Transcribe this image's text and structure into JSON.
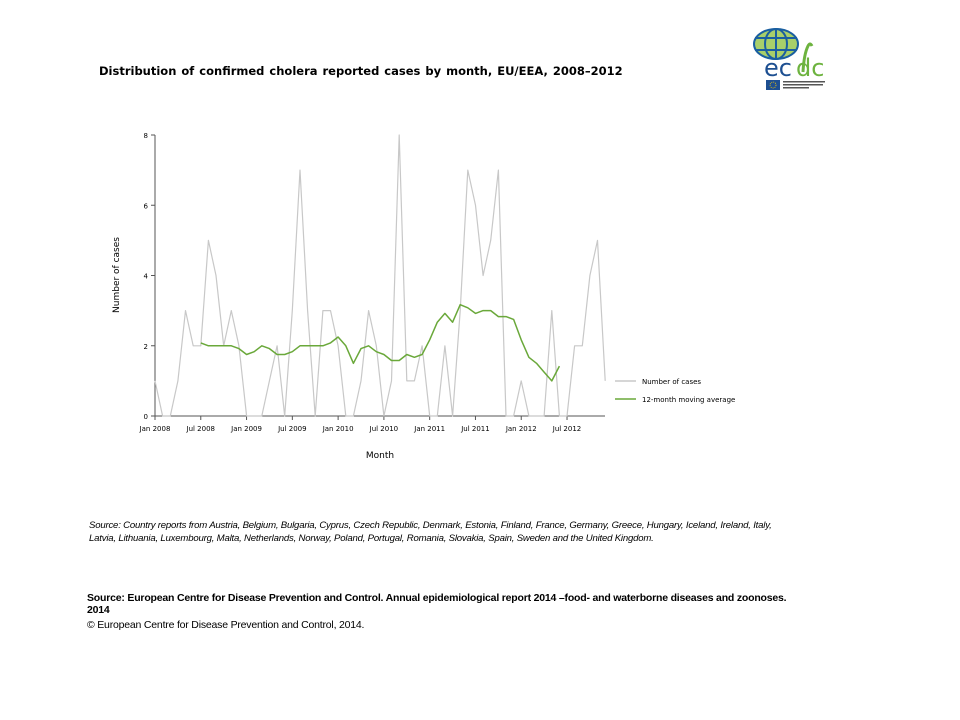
{
  "title": "Distribution  of confirmed  cholera reported cases by month, EU/EEA,  2008–2012",
  "logo": {
    "text": "ecdc",
    "subtext": "EUROPEAN CENTRE FOR DISEASE PREVENTION AND CONTROL",
    "colors": {
      "globe": "#1a5fa0",
      "land": "#a8cf6a",
      "green": "#6db33f",
      "blue": "#1d4f91"
    }
  },
  "source_countries": "Source: Country reports from Austria, Belgium, Bulgaria, Cyprus, Czech Republic, Denmark, Estonia, Finland, France, Germany, Greece, Hungary, Iceland, Ireland, Italy, Latvia, Lithuania, Luxembourg, Malta, Netherlands, Norway, Poland, Portugal, Romania, Slovakia, Spain, Sweden and the United Kingdom.",
  "source_report": "Source: European Centre for Disease Prevention and Control.  Annual epidemiological report 2014 –food- and waterborne diseases and zoonoses. 2014",
  "copyright": "© European Centre for Disease Prevention and Control, 2014.",
  "chart_data": {
    "type": "line",
    "title": "",
    "xlabel": "Month",
    "ylabel": "Number of cases",
    "ylim": [
      0,
      8
    ],
    "yticks": [
      "0",
      "2",
      "4",
      "6",
      "8"
    ],
    "xticks": [
      "Jan 2008",
      "Jul 2008",
      "Jan 2009",
      "Jul 2009",
      "Jan 2010",
      "Jul 2010",
      "Jan 2011",
      "Jul 2011",
      "Jan 2012",
      "Jul 2012"
    ],
    "x_start": "Jan 2008",
    "x_end": "Dec 2012",
    "grid": false,
    "legend_position": "right",
    "series": [
      {
        "name": "Number of cases",
        "color": "#c8c8c8",
        "start": "Jan 2008",
        "values": [
          1,
          0,
          0,
          1,
          3,
          2,
          2,
          5,
          4,
          2,
          3,
          2,
          0,
          0,
          0,
          1,
          2,
          0,
          3,
          7,
          3,
          0,
          3,
          3,
          2,
          0,
          0,
          1,
          3,
          2,
          0,
          1,
          8,
          1,
          1,
          2,
          0,
          0,
          2,
          0,
          3,
          7,
          6,
          4,
          5,
          7,
          0,
          0,
          1,
          0,
          0,
          0,
          3,
          0,
          0,
          2,
          2,
          4,
          5,
          1
        ]
      },
      {
        "name": "12-month moving average",
        "color": "#6aa83a",
        "start": "Jul 2008",
        "values": [
          2.08,
          2.0,
          2.0,
          2.0,
          2.0,
          1.92,
          1.75,
          1.83,
          2.0,
          1.92,
          1.75,
          1.75,
          1.83,
          2.0,
          2.0,
          2.0,
          2.0,
          2.08,
          2.25,
          2.0,
          1.5,
          1.92,
          2.0,
          1.83,
          1.75,
          1.58,
          1.58,
          1.75,
          1.67,
          1.75,
          2.17,
          2.67,
          2.92,
          2.67,
          3.17,
          3.08,
          2.92,
          3.0,
          3.0,
          2.83,
          2.83,
          2.75,
          2.17,
          1.67,
          1.5,
          1.25,
          1.0,
          1.42
        ]
      }
    ]
  }
}
